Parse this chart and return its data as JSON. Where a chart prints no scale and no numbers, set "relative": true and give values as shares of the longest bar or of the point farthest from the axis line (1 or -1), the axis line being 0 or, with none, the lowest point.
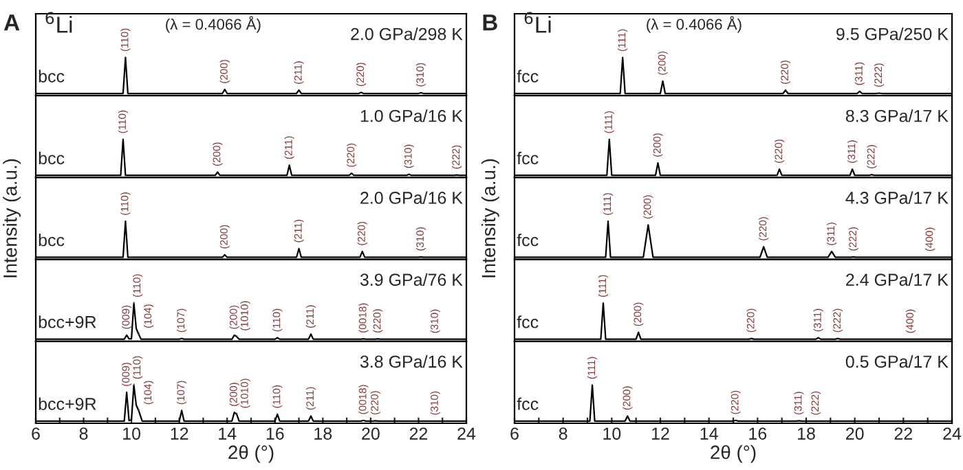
{
  "chart_data": [
    {
      "type": "line",
      "relative": true,
      "title": "2.0 GPa/298 K",
      "annotations": [
        "A",
        "$^{6}$Li",
        "(λ = 0.4066 Å)",
        {
          "text": "(110)",
          "x": 9.75,
          "y": 1
        },
        {
          "text": "(200)",
          "x": 13.9,
          "y": 0.12
        },
        {
          "text": "(211)",
          "x": 17.0,
          "y": 0.1
        },
        {
          "text": "(220)",
          "x": 19.6,
          "y": 0.04
        },
        {
          "text": "(310)",
          "x": 22.1,
          "y": 0.03
        }
      ],
      "xlim": [
        6,
        24
      ],
      "tick_labels": false,
      "series": [
        {
          "name": "bcc",
          "color": "#000000",
          "x": [
            6,
            9.65,
            9.75,
            9.85,
            13.8,
            13.9,
            14.0,
            16.9,
            17.0,
            17.1,
            19.5,
            19.6,
            19.7,
            22.0,
            22.1,
            22.2,
            24
          ],
          "values": [
            0.01,
            0.01,
            1,
            0.01,
            0.01,
            0.12,
            0.01,
            0.01,
            0.1,
            0.01,
            0.01,
            0.04,
            0.01,
            0.01,
            0.03,
            0.01,
            0.01
          ]
        }
      ]
    },
    {
      "type": "line",
      "relative": true,
      "title": "1.0 GPa/16 K",
      "annotations": [
        {
          "text": "(110)",
          "x": 9.65,
          "y": 1
        },
        {
          "text": "(200)",
          "x": 13.6,
          "y": 0.1
        },
        {
          "text": "(211)",
          "x": 16.6,
          "y": 0.29
        },
        {
          "text": "(220)",
          "x": 19.2,
          "y": 0.07
        },
        {
          "text": "(310)",
          "x": 21.6,
          "y": 0.04
        },
        {
          "text": "(222)",
          "x": 23.6,
          "y": 0.02
        }
      ],
      "xlim": [
        6,
        24
      ],
      "tick_labels": false,
      "series": [
        {
          "name": "bcc",
          "color": "#000000",
          "x": [
            6,
            9.55,
            9.65,
            9.75,
            13.5,
            13.6,
            13.7,
            16.5,
            16.6,
            16.7,
            19.1,
            19.2,
            19.3,
            21.5,
            21.6,
            21.7,
            23.5,
            23.6,
            23.7,
            24
          ],
          "values": [
            0.01,
            0.01,
            1,
            0.01,
            0.01,
            0.1,
            0.01,
            0.01,
            0.29,
            0.01,
            0.01,
            0.07,
            0.01,
            0.01,
            0.04,
            0.01,
            0.01,
            0.02,
            0.01,
            0.01
          ]
        }
      ]
    },
    {
      "type": "line",
      "relative": true,
      "title": "2.0 GPa/16 K",
      "ylabel": "Intensity (a.u.)",
      "annotations": [
        {
          "text": "(110)",
          "x": 9.75,
          "y": 1
        },
        {
          "text": "(200)",
          "x": 13.9,
          "y": 0.08
        },
        {
          "text": "(211)",
          "x": 17.0,
          "y": 0.25
        },
        {
          "text": "(220)",
          "x": 19.65,
          "y": 0.17
        },
        {
          "text": "(310)",
          "x": 22.1,
          "y": 0.02
        }
      ],
      "xlim": [
        6,
        24
      ],
      "tick_labels": false,
      "series": [
        {
          "name": "bcc",
          "color": "#000000",
          "x": [
            6,
            9.65,
            9.75,
            9.85,
            13.8,
            13.9,
            14.0,
            16.9,
            17.0,
            17.1,
            19.55,
            19.65,
            19.75,
            22.0,
            22.1,
            22.2,
            24
          ],
          "values": [
            0.01,
            0.01,
            1,
            0.01,
            0.01,
            0.08,
            0.01,
            0.01,
            0.25,
            0.01,
            0.01,
            0.17,
            0.01,
            0.01,
            0.02,
            0.01,
            0.01
          ]
        }
      ]
    },
    {
      "type": "line",
      "relative": true,
      "title": "3.9 GPa/76 K",
      "annotations": [
        {
          "text": "(009)",
          "x": 9.8,
          "y": 0.12
        },
        {
          "text": "(110)",
          "x": 10.1,
          "y": 1
        },
        {
          "text": "(104)",
          "x": 10.3,
          "y": 0.15
        },
        {
          "text": "(107)",
          "x": 12.1,
          "y": 0.03
        },
        {
          "text": "(200)",
          "x": 14.3,
          "y": 0.12
        },
        {
          "text": "(1010)",
          "x": 14.4,
          "y": 0.08
        },
        {
          "text": "(110)",
          "x": 16.1,
          "y": 0.05
        },
        {
          "text": "(211)",
          "x": 17.5,
          "y": 0.15
        },
        {
          "text": "(0018)",
          "x": 19.7,
          "y": 0.02
        },
        {
          "text": "(220)",
          "x": 20.3,
          "y": 0.02
        },
        {
          "text": "(310)",
          "x": 22.7,
          "y": 0.01
        }
      ],
      "xlim": [
        6,
        24
      ],
      "tick_labels": false,
      "series": [
        {
          "name": "bcc+9R",
          "color": "#000000",
          "x": [
            6,
            9.7,
            9.8,
            9.9,
            10.0,
            10.1,
            10.2,
            10.3,
            10.4,
            12.0,
            12.1,
            12.2,
            14.2,
            14.3,
            14.4,
            14.5,
            16.0,
            16.1,
            16.2,
            17.4,
            17.5,
            17.6,
            19.6,
            19.7,
            19.8,
            20.2,
            20.3,
            20.4,
            24
          ],
          "values": [
            0.01,
            0.01,
            0.12,
            0.02,
            0.02,
            1,
            0.3,
            0.15,
            0.01,
            0.01,
            0.03,
            0.01,
            0.01,
            0.12,
            0.08,
            0.01,
            0.01,
            0.05,
            0.01,
            0.01,
            0.15,
            0.01,
            0.01,
            0.02,
            0.01,
            0.01,
            0.02,
            0.01,
            0.01
          ]
        }
      ]
    },
    {
      "type": "line",
      "relative": true,
      "title": "3.8 GPa/16 K",
      "xlabel": "2θ (°)",
      "annotations": [
        {
          "text": "(009)",
          "x": 9.8,
          "y": 0.8
        },
        {
          "text": "(110)",
          "x": 10.1,
          "y": 1
        },
        {
          "text": "(104)",
          "x": 10.3,
          "y": 0.3
        },
        {
          "text": "(107)",
          "x": 12.1,
          "y": 0.3
        },
        {
          "text": "(200)",
          "x": 14.3,
          "y": 0.25
        },
        {
          "text": "(1010)",
          "x": 14.4,
          "y": 0.2
        },
        {
          "text": "(110)",
          "x": 16.1,
          "y": 0.2
        },
        {
          "text": "(211)",
          "x": 17.5,
          "y": 0.15
        },
        {
          "text": "(0018)",
          "x": 19.7,
          "y": 0.03
        },
        {
          "text": "(220)",
          "x": 20.2,
          "y": 0.02
        },
        {
          "text": "(310)",
          "x": 22.7,
          "y": 0.01
        }
      ],
      "xlim": [
        6,
        24
      ],
      "tick_labels": "x",
      "xticks": [
        6,
        {
          "value": 7,
          "label": null
        },
        8,
        {
          "value": 9,
          "label": null
        },
        10,
        {
          "value": 11,
          "label": null
        },
        12,
        {
          "value": 13,
          "label": null
        },
        14,
        {
          "value": 15,
          "label": null
        },
        16,
        {
          "value": 17,
          "label": null
        },
        18,
        {
          "value": 19,
          "label": null
        },
        20,
        {
          "value": 21,
          "label": null
        },
        22,
        {
          "value": 23,
          "label": null
        },
        24
      ],
      "series": [
        {
          "name": "bcc+9R",
          "color": "#000000",
          "x": [
            6,
            9.7,
            9.8,
            9.9,
            10.0,
            10.1,
            10.2,
            10.3,
            10.45,
            12.0,
            12.1,
            12.2,
            14.2,
            14.3,
            14.4,
            14.5,
            16.0,
            16.1,
            16.2,
            17.4,
            17.5,
            17.6,
            19.6,
            19.7,
            19.8,
            20.1,
            20.2,
            20.3,
            22.6,
            22.7,
            22.8,
            24
          ],
          "values": [
            0.01,
            0.01,
            0.8,
            0.02,
            0.05,
            1,
            0.45,
            0.3,
            0.01,
            0.01,
            0.3,
            0.01,
            0.01,
            0.25,
            0.2,
            0.01,
            0.01,
            0.2,
            0.01,
            0.01,
            0.15,
            0.01,
            0.01,
            0.03,
            0.01,
            0.01,
            0.02,
            0.01,
            0.01,
            0.01,
            0.01,
            0.01
          ]
        }
      ]
    },
    {
      "type": "line",
      "relative": true,
      "title": "9.5 GPa/250 K",
      "annotations": [
        "B",
        "$^{6}$Li",
        "(λ = 0.4066 Å)",
        {
          "text": "(111)",
          "x": 10.45,
          "y": 1
        },
        {
          "text": "(200)",
          "x": 12.1,
          "y": 0.35
        },
        {
          "text": "(220)",
          "x": 17.15,
          "y": 0.1
        },
        {
          "text": "(311)",
          "x": 20.2,
          "y": 0.07
        },
        {
          "text": "(222)",
          "x": 21.0,
          "y": 0.02
        }
      ],
      "xlim": [
        6,
        24
      ],
      "tick_labels": false,
      "series": [
        {
          "name": "fcc",
          "color": "#000000",
          "x": [
            6,
            10.35,
            10.45,
            10.55,
            12.0,
            12.1,
            12.2,
            17.05,
            17.15,
            17.25,
            20.1,
            20.2,
            20.3,
            20.9,
            21.0,
            21.1,
            24
          ],
          "values": [
            0.01,
            0.01,
            1,
            0.01,
            0.01,
            0.35,
            0.01,
            0.01,
            0.1,
            0.01,
            0.01,
            0.07,
            0.01,
            0.01,
            0.02,
            0.01,
            0.01
          ]
        }
      ]
    },
    {
      "type": "line",
      "relative": true,
      "title": "8.3 GPa/17 K",
      "annotations": [
        {
          "text": "(111)",
          "x": 9.9,
          "y": 1
        },
        {
          "text": "(200)",
          "x": 11.9,
          "y": 0.35
        },
        {
          "text": "(220)",
          "x": 16.9,
          "y": 0.18
        },
        {
          "text": "(311)",
          "x": 19.9,
          "y": 0.18
        },
        {
          "text": "(222)",
          "x": 20.7,
          "y": 0.03
        }
      ],
      "xlim": [
        6,
        24
      ],
      "tick_labels": false,
      "series": [
        {
          "name": "fcc",
          "color": "#000000",
          "x": [
            6,
            9.8,
            9.9,
            10.0,
            11.8,
            11.9,
            12.0,
            16.8,
            16.9,
            17.0,
            19.8,
            19.9,
            20.0,
            20.6,
            20.7,
            20.8,
            24
          ],
          "values": [
            0.01,
            0.01,
            1,
            0.01,
            0.01,
            0.35,
            0.01,
            0.01,
            0.18,
            0.01,
            0.01,
            0.18,
            0.01,
            0.01,
            0.03,
            0.01,
            0.01
          ]
        }
      ]
    },
    {
      "type": "line",
      "relative": true,
      "title": "4.3 GPa/17 K",
      "ylabel": "Intensity (a.u.)",
      "annotations": [
        {
          "text": "(111)",
          "x": 9.85,
          "y": 1
        },
        {
          "text": "(200)",
          "x": 11.5,
          "y": 0.9
        },
        {
          "text": "(220)",
          "x": 16.25,
          "y": 0.3
        },
        {
          "text": "(311)",
          "x": 19.05,
          "y": 0.17
        },
        {
          "text": "(222)",
          "x": 19.95,
          "y": 0.02
        },
        {
          "text": "(400)",
          "x": 23.1,
          "y": 0.01
        }
      ],
      "xlim": [
        6,
        24
      ],
      "tick_labels": false,
      "series": [
        {
          "name": "fcc",
          "color": "#000000",
          "x": [
            6,
            9.75,
            9.85,
            9.95,
            11.3,
            11.5,
            11.7,
            16.1,
            16.25,
            16.4,
            18.9,
            19.05,
            19.2,
            19.85,
            19.95,
            20.05,
            24
          ],
          "values": [
            0.01,
            0.01,
            1,
            0.01,
            0.01,
            0.9,
            0.01,
            0.01,
            0.3,
            0.01,
            0.01,
            0.17,
            0.01,
            0.01,
            0.02,
            0.01,
            0.01
          ]
        }
      ]
    },
    {
      "type": "line",
      "relative": true,
      "title": "2.4 GPa/17 K",
      "annotations": [
        {
          "text": "(111)",
          "x": 9.65,
          "y": 1
        },
        {
          "text": "(200)",
          "x": 11.1,
          "y": 0.2
        },
        {
          "text": "(220)",
          "x": 15.75,
          "y": 0.03
        },
        {
          "text": "(311)",
          "x": 18.5,
          "y": 0.05
        },
        {
          "text": "(222)",
          "x": 19.3,
          "y": 0.03
        },
        {
          "text": "(400)",
          "x": 22.3,
          "y": 0.01
        }
      ],
      "xlim": [
        6,
        24
      ],
      "tick_labels": false,
      "series": [
        {
          "name": "fcc",
          "color": "#000000",
          "x": [
            6,
            9.55,
            9.65,
            9.75,
            11.0,
            11.1,
            11.2,
            15.65,
            15.75,
            15.85,
            18.4,
            18.5,
            18.6,
            19.2,
            19.3,
            19.4,
            24
          ],
          "values": [
            0.01,
            0.01,
            1,
            0.01,
            0.01,
            0.2,
            0.01,
            0.01,
            0.03,
            0.01,
            0.01,
            0.05,
            0.01,
            0.01,
            0.03,
            0.01,
            0.01
          ]
        }
      ]
    },
    {
      "type": "line",
      "relative": true,
      "title": "0.5 GPa/17 K",
      "xlabel": "2θ (°)",
      "annotations": [
        {
          "text": "(111)",
          "x": 9.2,
          "y": 1
        },
        {
          "text": "(200)",
          "x": 10.65,
          "y": 0.15
        },
        {
          "text": "(220)",
          "x": 15.1,
          "y": 0.03
        },
        {
          "text": "(311)",
          "x": 17.7,
          "y": 0.02
        },
        {
          "text": "(222)",
          "x": 18.4,
          "y": 0.01
        }
      ],
      "xlim": [
        6,
        24
      ],
      "tick_labels": "x",
      "xticks": [
        6,
        {
          "value": 7,
          "label": null
        },
        8,
        {
          "value": 9,
          "label": null
        },
        10,
        {
          "value": 11,
          "label": null
        },
        12,
        {
          "value": 13,
          "label": null
        },
        14,
        {
          "value": 15,
          "label": null
        },
        16,
        {
          "value": 17,
          "label": null
        },
        18,
        {
          "value": 19,
          "label": null
        },
        20,
        {
          "value": 21,
          "label": null
        },
        22,
        {
          "value": 23,
          "label": null
        },
        24
      ],
      "series": [
        {
          "name": "fcc",
          "color": "#000000",
          "x": [
            6,
            9.1,
            9.2,
            9.3,
            10.55,
            10.65,
            10.75,
            15.0,
            15.1,
            15.2,
            17.6,
            17.7,
            17.8,
            24
          ],
          "values": [
            0.01,
            0.01,
            1,
            0.01,
            0.01,
            0.15,
            0.01,
            0.01,
            0.03,
            0.01,
            0.01,
            0.02,
            0.01,
            0.01
          ]
        }
      ]
    }
  ]
}
